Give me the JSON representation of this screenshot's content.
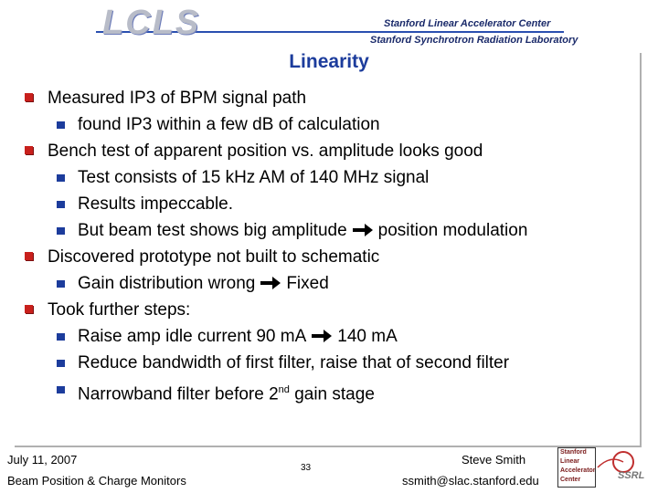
{
  "header": {
    "logo": "LCLS",
    "org1": "Stanford Linear Accelerator Center",
    "org2": "Stanford Synchrotron Radiation Laboratory"
  },
  "title": "Linearity",
  "bullets": [
    {
      "text": "Measured IP3 of BPM signal path",
      "sub": [
        {
          "parts": [
            "found IP3 within a few dB of calculation"
          ]
        }
      ]
    },
    {
      "text": "Bench test of apparent position vs. amplitude looks good",
      "sub": [
        {
          "parts": [
            "Test consists of 15 kHz AM of 140 MHz signal"
          ]
        },
        {
          "parts": [
            "Results impeccable."
          ]
        },
        {
          "parts": [
            "But beam test shows big amplitude",
            "position modulation"
          ]
        }
      ]
    },
    {
      "text": "Discovered prototype not built to schematic",
      "sub": [
        {
          "parts": [
            "Gain distribution wrong",
            "Fixed"
          ]
        }
      ]
    },
    {
      "text": "Took further steps:",
      "sub": [
        {
          "parts": [
            "Raise amp idle current 90 mA",
            "140 mA"
          ]
        },
        {
          "parts": [
            "Reduce bandwidth of first filter, raise that of second filter"
          ]
        },
        {
          "parts": [
            "Narrowband filter before 2"
          ],
          "sup": "nd",
          "after": "gain stage"
        }
      ]
    }
  ],
  "footer": {
    "date": "July 11, 2007",
    "subject": "Beam Position & Charge Monitors",
    "page": 33,
    "author": "Steve Smith",
    "email": "ssmith@slac.stanford.edu",
    "logo_lines": [
      "Stanford",
      "Linear",
      "Accelerator",
      "Center"
    ],
    "ssrl": "SSRL"
  }
}
